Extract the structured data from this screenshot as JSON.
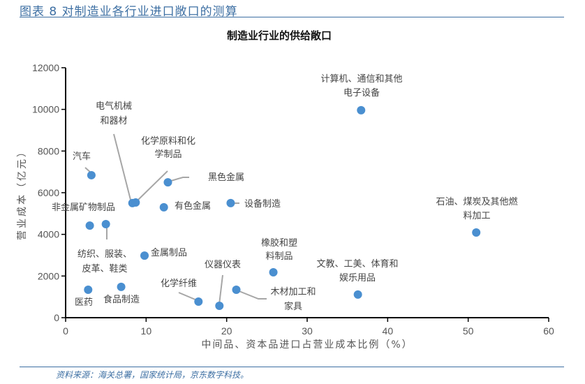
{
  "figure_title": "图表 8 对制造业各行业进口敞口的测算",
  "source": "资料来源：海关总署，国家统计局，京东数字科技。",
  "colors": {
    "point": "#4a8fd0",
    "leader": "#a6a6a6",
    "accent": "#3d6fa3"
  },
  "chart_data": {
    "type": "scatter",
    "title": "制造业行业的供给敞口",
    "xlabel": "中间品、资本品进口占营业成本比例（%）",
    "ylabel": "营业成本（亿元）",
    "xlim": [
      0,
      60
    ],
    "ylim": [
      0,
      12000
    ],
    "xticks": [
      "0",
      "10",
      "20",
      "30",
      "40",
      "50",
      "60"
    ],
    "yticks": [
      "0",
      "2000",
      "4000",
      "6000",
      "8000",
      "10000",
      "12000"
    ],
    "grid": false,
    "points": [
      {
        "label": [
          "汽车"
        ],
        "x": 3.2,
        "y": 6840
      },
      {
        "label": [
          "电气机械",
          "和器材"
        ],
        "x": 8.3,
        "y": 5500
      },
      {
        "label": [
          "化学原料和化",
          "学制品"
        ],
        "x": 8.7,
        "y": 5530
      },
      {
        "label": [
          "黑色金属"
        ],
        "x": 12.7,
        "y": 6500
      },
      {
        "label": [
          "有色金属"
        ],
        "x": 12.2,
        "y": 5300
      },
      {
        "label": [
          "设备制造"
        ],
        "x": 20.5,
        "y": 5500
      },
      {
        "label": [
          "非金属矿物制品"
        ],
        "x": 3.0,
        "y": 4420
      },
      {
        "label": [
          "纺织、服装、",
          "皮革、鞋类"
        ],
        "x": 5.0,
        "y": 4490
      },
      {
        "label": [
          "金属制品"
        ],
        "x": 9.8,
        "y": 2980
      },
      {
        "label": [
          "医药"
        ],
        "x": 2.8,
        "y": 1340
      },
      {
        "label": [
          "食品制造"
        ],
        "x": 6.9,
        "y": 1480
      },
      {
        "label": [
          "化学纤维"
        ],
        "x": 16.5,
        "y": 770
      },
      {
        "label": [
          "仪器仪表"
        ],
        "x": 19.1,
        "y": 570
      },
      {
        "label": [
          "木材加工和",
          "家具"
        ],
        "x": 21.2,
        "y": 1340
      },
      {
        "label": [
          "橡胶和塑",
          "料制品"
        ],
        "x": 25.8,
        "y": 2180
      },
      {
        "label": [
          "文教、工美、体育和",
          "娱乐用品"
        ],
        "x": 36.3,
        "y": 1110
      },
      {
        "label": [
          "石油、煤炭及其他燃",
          "料加工"
        ],
        "x": 51.0,
        "y": 4090
      },
      {
        "label": [
          "计算机、通信和其他",
          "电子设备"
        ],
        "x": 36.7,
        "y": 9960
      }
    ]
  }
}
